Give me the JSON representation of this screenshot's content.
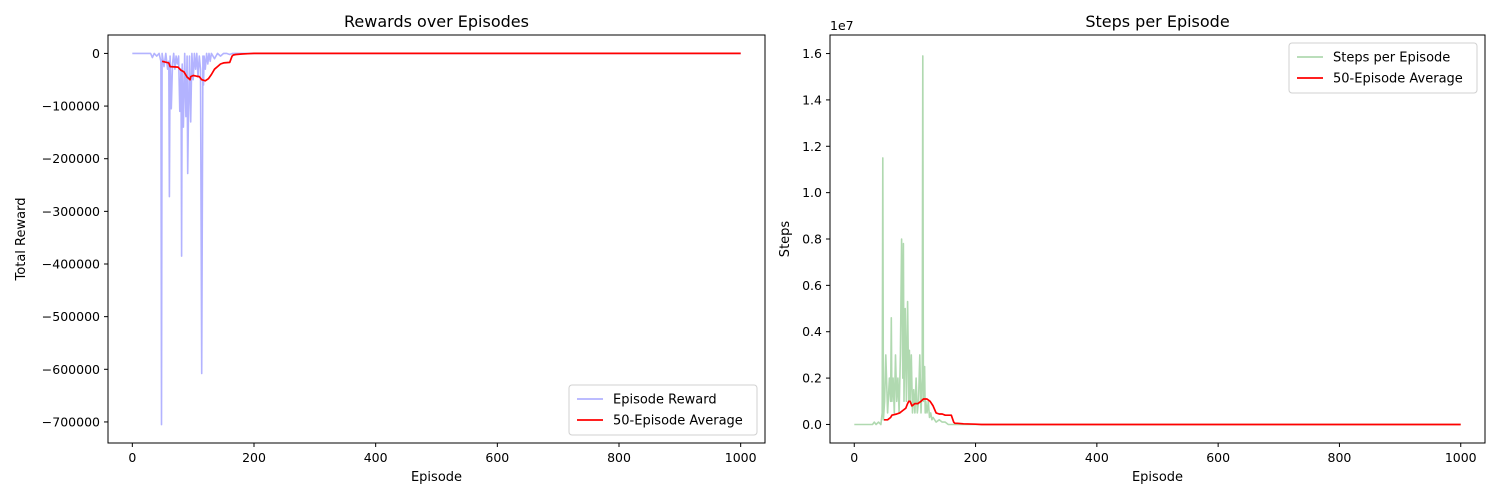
{
  "chart_data": [
    {
      "type": "line",
      "title": "Rewards over Episodes",
      "xlabel": "Episode",
      "ylabel": "Total Reward",
      "xlim": [
        -40,
        1040
      ],
      "ylim": [
        -740000,
        35000
      ],
      "xticks": [
        0,
        200,
        400,
        600,
        800,
        1000
      ],
      "xtick_labels": [
        "0",
        "200",
        "400",
        "600",
        "800",
        "1000"
      ],
      "yticks": [
        0,
        -100000,
        -200000,
        -300000,
        -400000,
        -500000,
        -600000,
        -700000
      ],
      "ytick_labels": [
        "0",
        "−100000",
        "−200000",
        "−300000",
        "−400000",
        "−500000",
        "−600000",
        "−700000"
      ],
      "legend_position": "lower-right",
      "series": [
        {
          "name": "Episode Reward",
          "color": "#b3b3ff",
          "x": [
            0,
            30,
            33,
            36,
            40,
            44,
            47,
            48,
            49,
            52,
            55,
            58,
            60,
            61,
            62,
            64,
            66,
            68,
            70,
            72,
            74,
            76,
            78,
            80,
            81,
            82,
            84,
            86,
            88,
            90,
            91,
            92,
            94,
            96,
            98,
            100,
            102,
            104,
            106,
            108,
            110,
            112,
            114,
            116,
            117,
            118,
            120,
            122,
            124,
            126,
            128,
            130,
            135,
            140,
            145,
            150,
            155,
            160,
            165,
            170,
            175,
            180,
            1000
          ],
          "values": [
            0,
            0,
            -8000,
            0,
            -5000,
            0,
            -15000,
            -705000,
            0,
            -25000,
            0,
            -30000,
            -15000,
            -272000,
            -5000,
            -105000,
            -20000,
            0,
            -30000,
            -5000,
            -20000,
            -5000,
            -110000,
            -30000,
            -385000,
            -20000,
            -140000,
            0,
            -120000,
            -5000,
            -228000,
            -140000,
            -5000,
            -130000,
            0,
            -50000,
            0,
            -30000,
            0,
            -45000,
            -5000,
            -30000,
            -608000,
            -5000,
            -60000,
            -5000,
            -30000,
            0,
            -20000,
            0,
            -15000,
            0,
            -10000,
            0,
            -5000,
            0,
            0,
            -2000,
            0,
            0,
            0,
            0,
            0
          ]
        },
        {
          "name": "50-Episode Average",
          "color": "#ff0000",
          "x": [
            49,
            60,
            62,
            75,
            80,
            85,
            90,
            95,
            96,
            100,
            105,
            110,
            114,
            120,
            125,
            130,
            135,
            140,
            145,
            150,
            160,
            164,
            166,
            170,
            180,
            190,
            200,
            210,
            1000
          ],
          "values": [
            -15000,
            -18000,
            -25000,
            -26000,
            -32000,
            -35000,
            -45000,
            -50000,
            -44000,
            -42000,
            -43000,
            -44000,
            -50000,
            -52000,
            -48000,
            -40000,
            -30000,
            -25000,
            -20000,
            -18000,
            -17000,
            -5000,
            -3000,
            -2000,
            -1000,
            -500,
            0,
            0,
            0
          ]
        }
      ]
    },
    {
      "type": "line",
      "title": "Steps per Episode",
      "xlabel": "Episode",
      "ylabel": "Steps",
      "scale_label": "1e7",
      "xlim": [
        -40,
        1040
      ],
      "ylim": [
        -0.08,
        1.68
      ],
      "xticks": [
        0,
        200,
        400,
        600,
        800,
        1000
      ],
      "xtick_labels": [
        "0",
        "200",
        "400",
        "600",
        "800",
        "1000"
      ],
      "yticks": [
        0,
        0.2,
        0.4,
        0.6,
        0.8,
        1.0,
        1.2,
        1.4,
        1.6
      ],
      "ytick_labels": [
        "0.0",
        "0.2",
        "0.4",
        "0.6",
        "0.8",
        "1.0",
        "1.2",
        "1.4",
        "1.6"
      ],
      "legend_position": "upper-right",
      "series": [
        {
          "name": "Steps per Episode",
          "color": "#b0d9b0",
          "x": [
            0,
            30,
            33,
            36,
            40,
            44,
            46,
            47,
            48,
            50,
            52,
            55,
            58,
            60,
            61,
            62,
            64,
            66,
            68,
            70,
            72,
            74,
            76,
            78,
            80,
            81,
            82,
            84,
            86,
            88,
            90,
            91,
            92,
            94,
            96,
            98,
            100,
            102,
            104,
            106,
            108,
            110,
            112,
            113,
            114,
            116,
            117,
            118,
            120,
            122,
            124,
            126,
            128,
            130,
            135,
            140,
            145,
            150,
            155,
            160,
            165,
            170,
            180,
            1000
          ],
          "values": [
            0,
            0,
            0.01,
            0,
            0.01,
            0,
            0.05,
            1.15,
            0.02,
            0.1,
            0.3,
            0.05,
            0.2,
            0.1,
            0.46,
            0.1,
            0.2,
            0.05,
            0.3,
            0.1,
            0.2,
            0.05,
            0.3,
            0.8,
            0.2,
            0.78,
            0.1,
            0.5,
            0.1,
            0.53,
            0.1,
            0.32,
            0.1,
            0.3,
            0.05,
            0.15,
            0.05,
            0.2,
            0.05,
            0.1,
            0.3,
            0.05,
            0.2,
            1.59,
            0.1,
            0.25,
            0.05,
            0.1,
            0.05,
            0.1,
            0.03,
            0.05,
            0.02,
            0.03,
            0.01,
            0.02,
            0.01,
            0.01,
            0,
            0,
            0,
            0,
            0,
            0
          ]
        },
        {
          "name": "50-Episode Average",
          "color": "#ff0000",
          "x": [
            49,
            55,
            60,
            62,
            70,
            75,
            80,
            85,
            88,
            90,
            92,
            95,
            100,
            105,
            110,
            114,
            120,
            125,
            130,
            135,
            140,
            145,
            150,
            160,
            164,
            166,
            170,
            180,
            200,
            210,
            1000
          ],
          "values": [
            0.02,
            0.02,
            0.03,
            0.04,
            0.045,
            0.05,
            0.06,
            0.07,
            0.09,
            0.1,
            0.1,
            0.08,
            0.09,
            0.09,
            0.1,
            0.11,
            0.11,
            0.1,
            0.08,
            0.05,
            0.045,
            0.045,
            0.04,
            0.04,
            0.01,
            0.005,
            0.005,
            0.003,
            0.001,
            0,
            0
          ]
        }
      ]
    }
  ]
}
